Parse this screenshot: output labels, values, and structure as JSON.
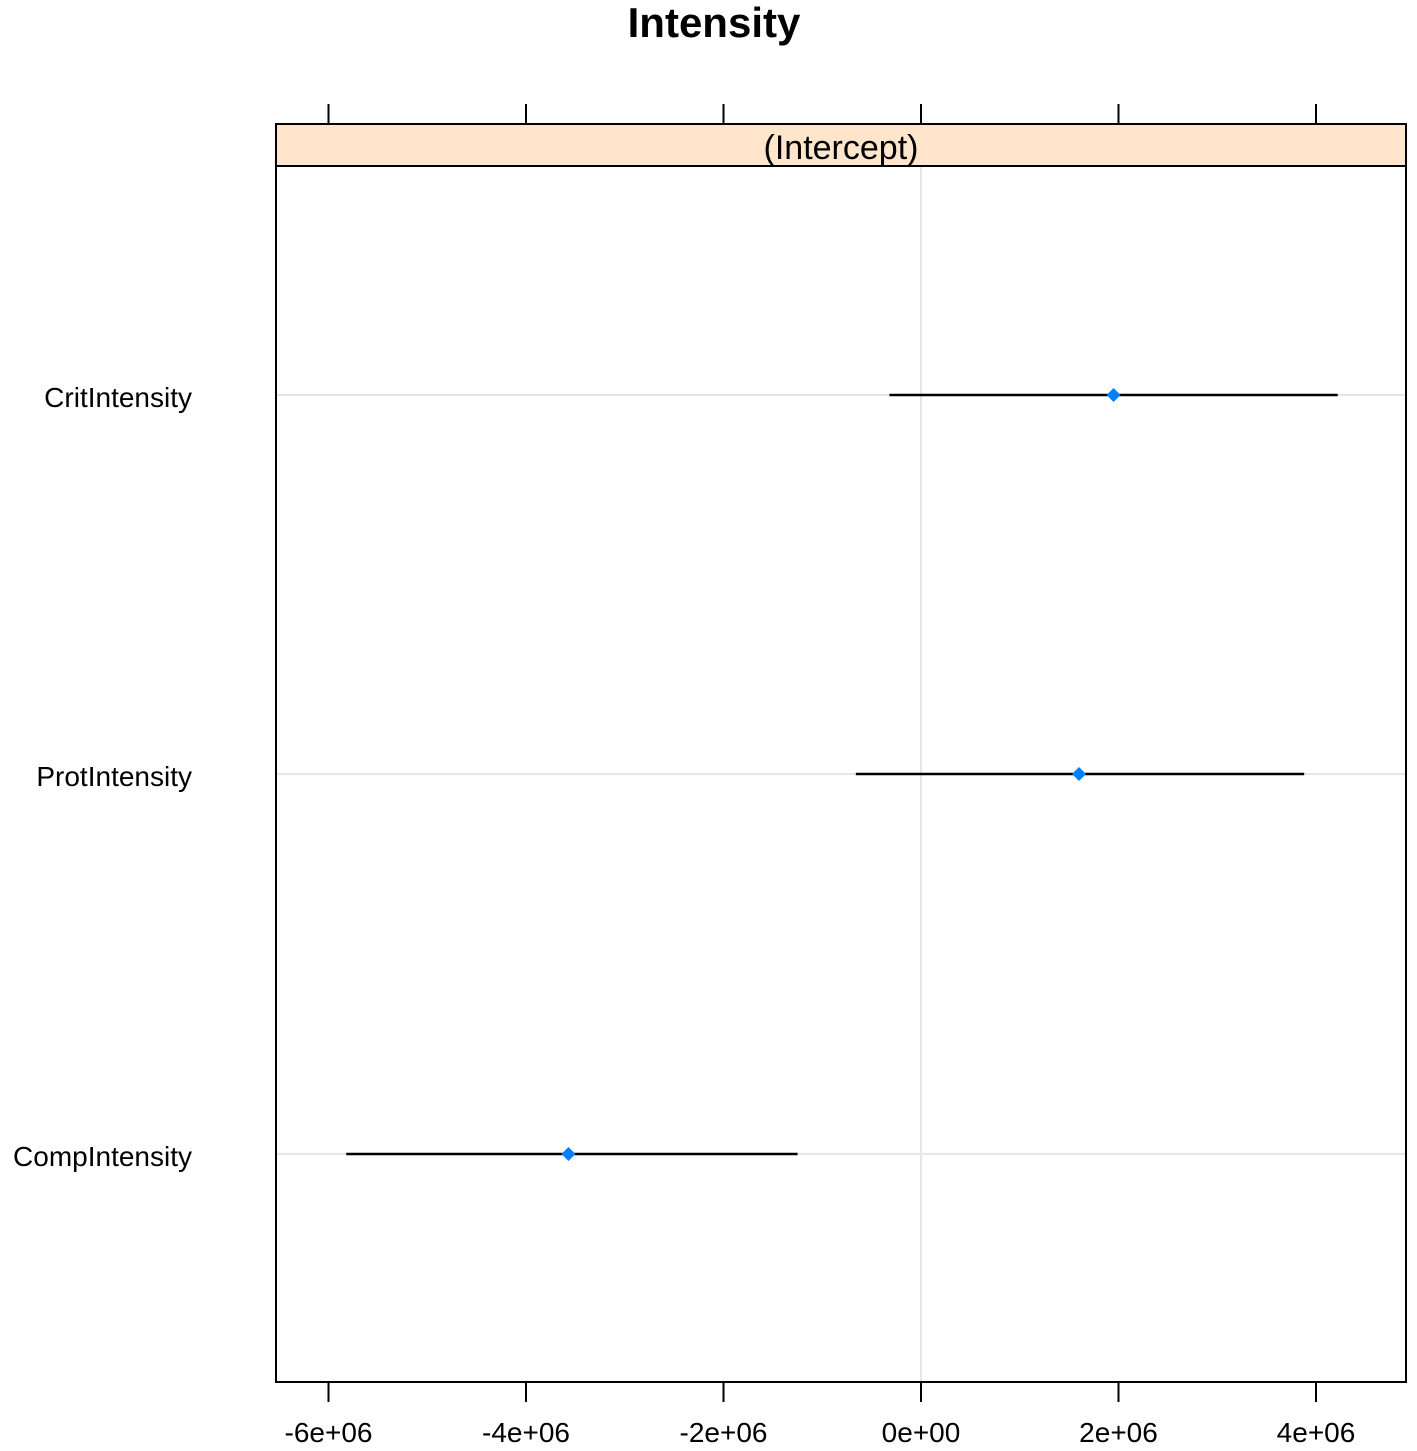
{
  "chart_data": {
    "type": "dotplot-errorbar",
    "title": "Intensity",
    "panel_label": "(Intercept)",
    "xlim": [
      -6500000,
      4900000
    ],
    "x_ticks": [
      -6000000,
      -4000000,
      -2000000,
      0,
      2000000,
      4000000
    ],
    "x_tick_labels": [
      "-6e+06",
      "-4e+06",
      "-2e+06",
      "0e+00",
      "2e+06",
      "4e+06"
    ],
    "categories": [
      "CritIntensity",
      "ProtIntensity",
      "CompIntensity"
    ],
    "estimates": [
      1950000,
      1600000,
      -3570000
    ],
    "lower": [
      -320000,
      -660000,
      -5820000
    ],
    "upper": [
      4220000,
      3880000,
      -1250000
    ],
    "colors": {
      "strip_fill": "#ffe5cc",
      "point": "#0080ff",
      "interval": "#000000",
      "gridline": "#e6e6e6"
    }
  }
}
